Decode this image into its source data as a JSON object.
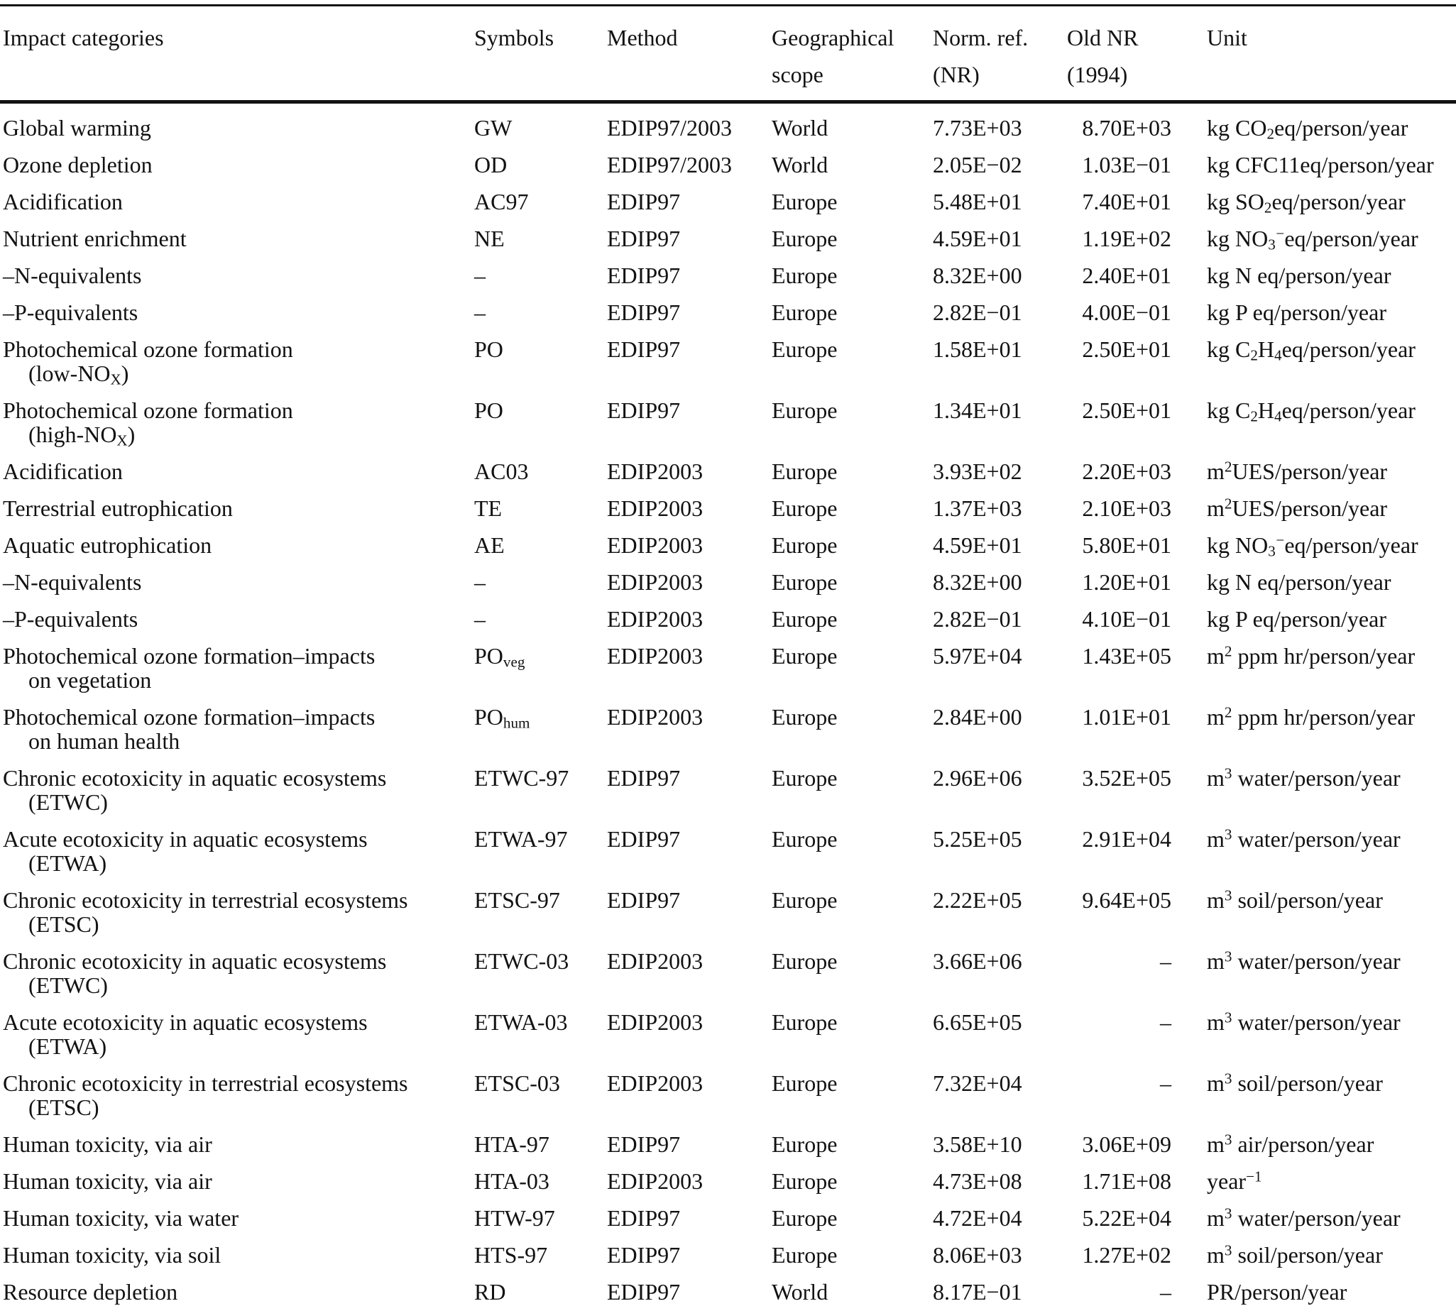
{
  "colors": {
    "text": "#121212",
    "background": "#ffffff",
    "rule": "#121212"
  },
  "table": {
    "columns": [
      {
        "key": "impact-categories",
        "lines": [
          "Impact categories"
        ]
      },
      {
        "key": "symbols",
        "lines": [
          "Symbols"
        ]
      },
      {
        "key": "method",
        "lines": [
          "Method"
        ]
      },
      {
        "key": "geographical-scope",
        "lines": [
          "Geographical",
          "scope"
        ]
      },
      {
        "key": "norm-ref",
        "lines": [
          "Norm. ref.",
          "(NR)"
        ]
      },
      {
        "key": "old-nr",
        "lines": [
          "Old NR",
          "(1994)"
        ]
      },
      {
        "key": "unit",
        "lines": [
          "Unit"
        ]
      }
    ],
    "rows": [
      {
        "category": [
          "Global warming"
        ],
        "symbol": "GW",
        "method": "EDIP97/2003",
        "scope": "World",
        "nr": "7.73E+03",
        "old_nr": "8.70E+03",
        "unit": "kg CO_{2}eq/person/year"
      },
      {
        "category": [
          "Ozone depletion"
        ],
        "symbol": "OD",
        "method": "EDIP97/2003",
        "scope": "World",
        "nr": "2.05E−02",
        "old_nr": "1.03E−01",
        "unit": "kg CFC11eq/person/year"
      },
      {
        "category": [
          "Acidification"
        ],
        "symbol": "AC97",
        "method": "EDIP97",
        "scope": "Europe",
        "nr": "5.48E+01",
        "old_nr": "7.40E+01",
        "unit": "kg SO_{2}eq/person/year"
      },
      {
        "category": [
          "Nutrient enrichment"
        ],
        "symbol": "NE",
        "method": "EDIP97",
        "scope": "Europe",
        "nr": "4.59E+01",
        "old_nr": "1.19E+02",
        "unit": "kg NO_{3}^{−}eq/person/year"
      },
      {
        "category": [
          "–N-equivalents"
        ],
        "symbol": "–",
        "method": "EDIP97",
        "scope": "Europe",
        "nr": "8.32E+00",
        "old_nr": "2.40E+01",
        "unit": "kg N eq/person/year"
      },
      {
        "category": [
          "–P-equivalents"
        ],
        "symbol": "–",
        "method": "EDIP97",
        "scope": "Europe",
        "nr": "2.82E−01",
        "old_nr": "4.00E−01",
        "unit": "kg P eq/person/year"
      },
      {
        "category": [
          "Photochemical ozone formation",
          "(low-NO_{X})"
        ],
        "symbol": "PO",
        "method": "EDIP97",
        "scope": "Europe",
        "nr": "1.58E+01",
        "old_nr": "2.50E+01",
        "unit": "kg C_{2}H_{4}eq/person/year"
      },
      {
        "category": [
          "Photochemical ozone formation",
          "(high-NO_{X})"
        ],
        "symbol": "PO",
        "method": "EDIP97",
        "scope": "Europe",
        "nr": "1.34E+01",
        "old_nr": "2.50E+01",
        "unit": "kg C_{2}H_{4}eq/person/year"
      },
      {
        "category": [
          "Acidification"
        ],
        "symbol": "AC03",
        "method": "EDIP2003",
        "scope": "Europe",
        "nr": "3.93E+02",
        "old_nr": "2.20E+03",
        "unit": "m^{2}UES/person/year"
      },
      {
        "category": [
          "Terrestrial eutrophication"
        ],
        "symbol": "TE",
        "method": "EDIP2003",
        "scope": "Europe",
        "nr": "1.37E+03",
        "old_nr": "2.10E+03",
        "unit": "m^{2}UES/person/year"
      },
      {
        "category": [
          "Aquatic eutrophication"
        ],
        "symbol": "AE",
        "method": "EDIP2003",
        "scope": "Europe",
        "nr": "4.59E+01",
        "old_nr": "5.80E+01",
        "unit": "kg NO_{3}^{−}eq/person/year"
      },
      {
        "category": [
          "–N-equivalents"
        ],
        "symbol": "–",
        "method": "EDIP2003",
        "scope": "Europe",
        "nr": "8.32E+00",
        "old_nr": "1.20E+01",
        "unit": "kg N eq/person/year"
      },
      {
        "category": [
          "–P-equivalents"
        ],
        "symbol": "–",
        "method": "EDIP2003",
        "scope": "Europe",
        "nr": "2.82E−01",
        "old_nr": "4.10E−01",
        "unit": "kg P eq/person/year"
      },
      {
        "category": [
          "Photochemical ozone formation–impacts",
          "on vegetation"
        ],
        "symbol": "PO_{veg}",
        "method": "EDIP2003",
        "scope": "Europe",
        "nr": "5.97E+04",
        "old_nr": "1.43E+05",
        "unit": "m^{2} ppm hr/person/year"
      },
      {
        "category": [
          "Photochemical ozone formation–impacts",
          "on human health"
        ],
        "symbol": "PO_{hum}",
        "method": "EDIP2003",
        "scope": "Europe",
        "nr": "2.84E+00",
        "old_nr": "1.01E+01",
        "unit": "m^{2} ppm hr/person/year"
      },
      {
        "category": [
          "Chronic ecotoxicity in aquatic ecosystems",
          "(ETWC)"
        ],
        "symbol": "ETWC-97",
        "method": "EDIP97",
        "scope": "Europe",
        "nr": "2.96E+06",
        "old_nr": "3.52E+05",
        "unit": "m^{3} water/person/year"
      },
      {
        "category": [
          "Acute ecotoxicity in aquatic ecosystems",
          "(ETWA)"
        ],
        "symbol": "ETWA-97",
        "method": "EDIP97",
        "scope": "Europe",
        "nr": "5.25E+05",
        "old_nr": "2.91E+04",
        "unit": "m^{3} water/person/year"
      },
      {
        "category": [
          "Chronic ecotoxicity in terrestrial ecosystems",
          "(ETSC)"
        ],
        "symbol": "ETSC-97",
        "method": "EDIP97",
        "scope": "Europe",
        "nr": "2.22E+05",
        "old_nr": "9.64E+05",
        "unit": "m^{3} soil/person/year"
      },
      {
        "category": [
          "Chronic ecotoxicity in aquatic ecosystems",
          "(ETWC)"
        ],
        "symbol": "ETWC-03",
        "method": "EDIP2003",
        "scope": "Europe",
        "nr": "3.66E+06",
        "old_nr": "–",
        "unit": "m^{3} water/person/year"
      },
      {
        "category": [
          "Acute ecotoxicity in aquatic ecosystems",
          "(ETWA)"
        ],
        "symbol": "ETWA-03",
        "method": "EDIP2003",
        "scope": "Europe",
        "nr": "6.65E+05",
        "old_nr": "–",
        "unit": "m^{3} water/person/year"
      },
      {
        "category": [
          "Chronic ecotoxicity in terrestrial ecosystems",
          "(ETSC)"
        ],
        "symbol": "ETSC-03",
        "method": "EDIP2003",
        "scope": "Europe",
        "nr": "7.32E+04",
        "old_nr": "–",
        "unit": "m^{3} soil/person/year"
      },
      {
        "category": [
          "Human toxicity, via air"
        ],
        "symbol": "HTA-97",
        "method": "EDIP97",
        "scope": "Europe",
        "nr": "3.58E+10",
        "old_nr": "3.06E+09",
        "unit": "m^{3} air/person/year"
      },
      {
        "category": [
          "Human toxicity, via air"
        ],
        "symbol": "HTA-03",
        "method": "EDIP2003",
        "scope": "Europe",
        "nr": "4.73E+08",
        "old_nr": "1.71E+08",
        "unit": "year^{−1}"
      },
      {
        "category": [
          "Human toxicity, via water"
        ],
        "symbol": "HTW-97",
        "method": "EDIP97",
        "scope": "Europe",
        "nr": "4.72E+04",
        "old_nr": "5.22E+04",
        "unit": "m^{3} water/person/year"
      },
      {
        "category": [
          "Human toxicity, via soil"
        ],
        "symbol": "HTS-97",
        "method": "EDIP97",
        "scope": "Europe",
        "nr": "8.06E+03",
        "old_nr": "1.27E+02",
        "unit": "m^{3} soil/person/year"
      },
      {
        "category": [
          "Resource depletion"
        ],
        "symbol": "RD",
        "method": "EDIP97",
        "scope": "World",
        "nr": "8.17E−01",
        "old_nr": "–",
        "unit": "PR/person/year"
      }
    ]
  }
}
